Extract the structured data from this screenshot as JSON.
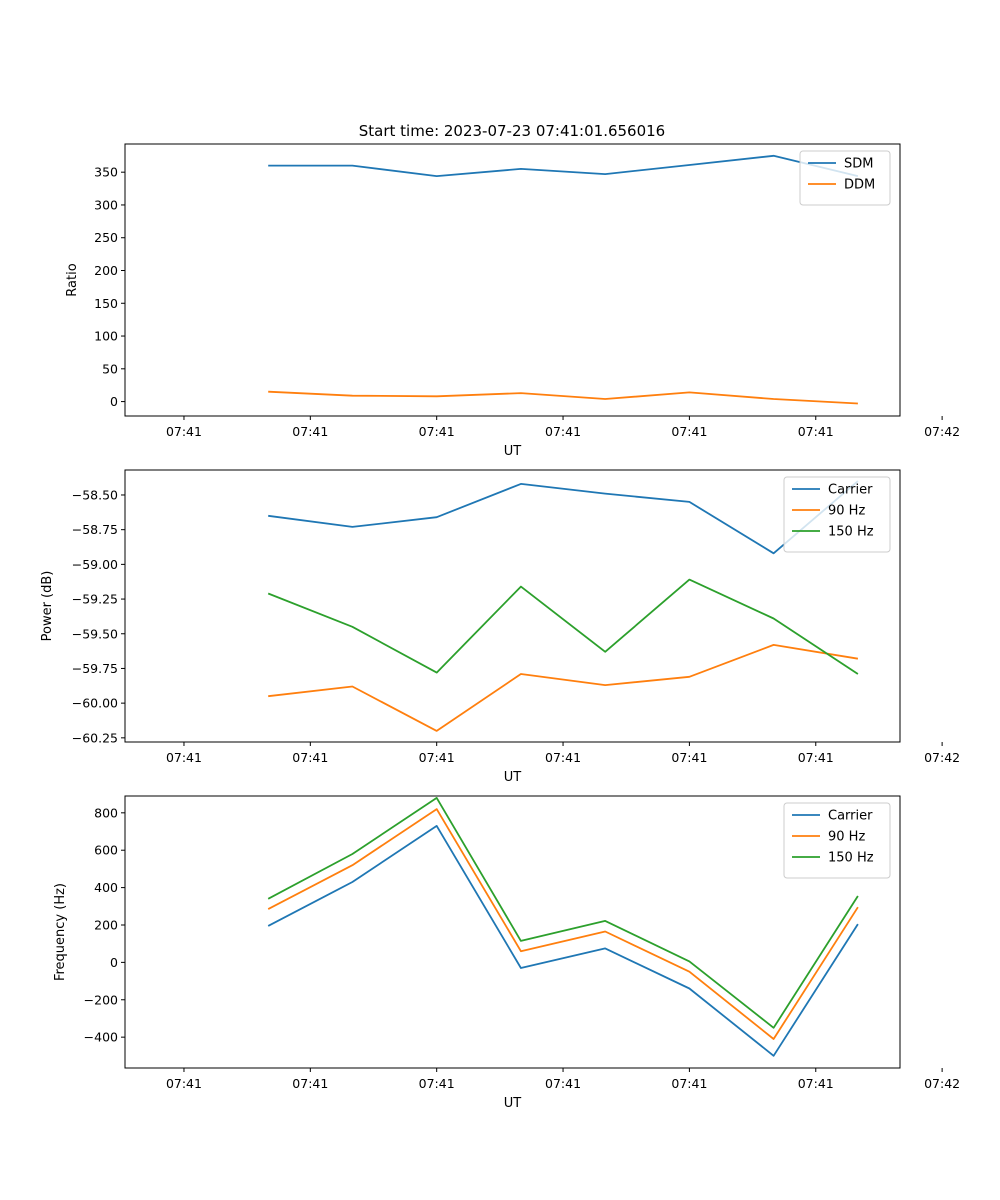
{
  "figure": {
    "title": "Start time: 2023-07-23 07:41:01.656016"
  },
  "colors": {
    "blue": "#1f77b4",
    "orange": "#ff7f0e",
    "green": "#2ca02c"
  },
  "chart_data": [
    {
      "type": "line",
      "title": "Start time: 2023-07-23 07:41:01.656016",
      "xlabel": "UT",
      "ylabel": "Ratio",
      "x": [
        1,
        2,
        3,
        4,
        5,
        6,
        7,
        8
      ],
      "xlim": [
        -0.7,
        8.5
      ],
      "xticks": [
        0,
        1.5,
        3,
        4.5,
        6,
        7.5,
        9
      ],
      "xtick_labels": [
        "07:41",
        "07:41",
        "07:41",
        "07:41",
        "07:41",
        "07:41",
        "07:42"
      ],
      "ylim": [
        -22,
        393
      ],
      "yticks": [
        0,
        50,
        100,
        150,
        200,
        250,
        300,
        350
      ],
      "ytick_labels": [
        "0",
        "50",
        "100",
        "150",
        "200",
        "250",
        "300",
        "350"
      ],
      "legend": "top-right",
      "series": [
        {
          "name": "SDM",
          "color": "#1f77b4",
          "values": [
            360,
            360,
            344,
            355,
            347,
            361,
            375,
            344
          ]
        },
        {
          "name": "DDM",
          "color": "#ff7f0e",
          "values": [
            15,
            9,
            8,
            13,
            4,
            14,
            4,
            -3
          ]
        }
      ]
    },
    {
      "type": "line",
      "title": "",
      "xlabel": "UT",
      "ylabel": "Power (dB)",
      "x": [
        1,
        2,
        3,
        4,
        5,
        6,
        7,
        8
      ],
      "xlim": [
        -0.7,
        8.5
      ],
      "xticks": [
        0,
        1.5,
        3,
        4.5,
        6,
        7.5,
        9
      ],
      "xtick_labels": [
        "07:41",
        "07:41",
        "07:41",
        "07:41",
        "07:41",
        "07:41",
        "07:42"
      ],
      "ylim": [
        -60.28,
        -58.32
      ],
      "yticks": [
        -60.25,
        -60.0,
        -59.75,
        -59.5,
        -59.25,
        -59.0,
        -58.75,
        -58.5
      ],
      "ytick_labels": [
        "−60.25",
        "−60.00",
        "−59.75",
        "−59.50",
        "−59.25",
        "−59.00",
        "−58.75",
        "−58.50"
      ],
      "legend": "top-right",
      "series": [
        {
          "name": "Carrier",
          "color": "#1f77b4",
          "values": [
            -58.65,
            -58.73,
            -58.66,
            -58.42,
            -58.49,
            -58.55,
            -58.92,
            -58.4
          ]
        },
        {
          "name": "90 Hz",
          "color": "#ff7f0e",
          "values": [
            -59.95,
            -59.88,
            -60.2,
            -59.79,
            -59.87,
            -59.81,
            -59.58,
            -59.68
          ]
        },
        {
          "name": "150 Hz",
          "color": "#2ca02c",
          "values": [
            -59.21,
            -59.45,
            -59.78,
            -59.16,
            -59.63,
            -59.11,
            -59.39,
            -59.79
          ]
        }
      ]
    },
    {
      "type": "line",
      "title": "",
      "xlabel": "UT",
      "ylabel": "Frequency (Hz)",
      "x": [
        1,
        2,
        3,
        4,
        5,
        6,
        7,
        8
      ],
      "xlim": [
        -0.7,
        8.5
      ],
      "xticks": [
        0,
        1.5,
        3,
        4.5,
        6,
        7.5,
        9
      ],
      "xtick_labels": [
        "07:41",
        "07:41",
        "07:41",
        "07:41",
        "07:41",
        "07:41",
        "07:42"
      ],
      "ylim": [
        -565,
        890
      ],
      "yticks": [
        -400,
        -200,
        0,
        200,
        400,
        600,
        800
      ],
      "ytick_labels": [
        "−400",
        "−200",
        "0",
        "200",
        "400",
        "600",
        "800"
      ],
      "legend": "top-right",
      "series": [
        {
          "name": "Carrier",
          "color": "#1f77b4",
          "values": [
            195,
            430,
            730,
            -30,
            75,
            -140,
            -500,
            205
          ]
        },
        {
          "name": "90 Hz",
          "color": "#ff7f0e",
          "values": [
            285,
            520,
            820,
            60,
            165,
            -50,
            -410,
            295
          ]
        },
        {
          "name": "150 Hz",
          "color": "#2ca02c",
          "values": [
            340,
            580,
            880,
            115,
            222,
            5,
            -350,
            355
          ]
        }
      ]
    }
  ]
}
